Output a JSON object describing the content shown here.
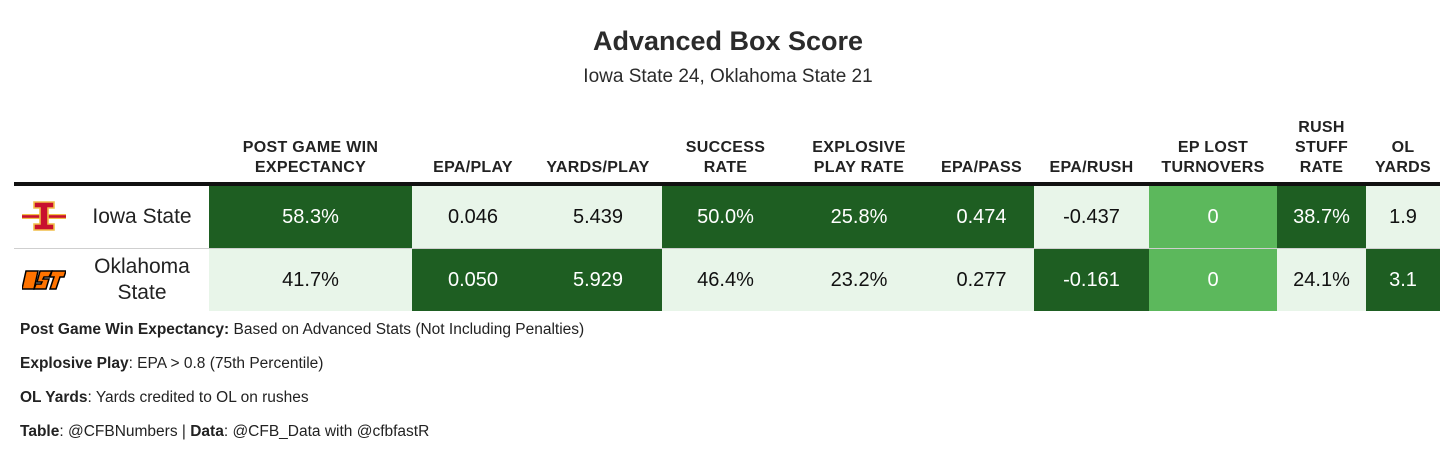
{
  "title": "Advanced Box Score",
  "subtitle": "Iowa State 24, Oklahoma State 21",
  "colors": {
    "dark": "#1e5e22",
    "mid": "#5cb85c",
    "light": "#e8f5e9",
    "text_dark": "#ffffff",
    "text_light": "#111111"
  },
  "chart_data": {
    "type": "table",
    "columns": [
      "POST GAME WIN EXPECTANCY",
      "EPA/PLAY",
      "YARDS/PLAY",
      "SUCCESS RATE",
      "EXPLOSIVE PLAY RATE",
      "EPA/PASS",
      "EPA/RUSH",
      "EP LOST TURNOVERS",
      "RUSH STUFF RATE",
      "OL YARDS"
    ],
    "rows": [
      {
        "team": "Iowa State",
        "logo": "iowa-state-logo",
        "values": [
          "58.3%",
          "0.046",
          "5.439",
          "50.0%",
          "25.8%",
          "0.474",
          "-0.437",
          "0",
          "38.7%",
          "1.9"
        ],
        "shade": [
          "dark",
          "light",
          "light",
          "dark",
          "dark",
          "dark",
          "light",
          "mid",
          "dark",
          "light"
        ]
      },
      {
        "team": "Oklahoma State",
        "logo": "oklahoma-state-logo",
        "values": [
          "41.7%",
          "0.050",
          "5.929",
          "46.4%",
          "23.2%",
          "0.277",
          "-0.161",
          "0",
          "24.1%",
          "3.1"
        ],
        "shade": [
          "light",
          "dark",
          "dark",
          "light",
          "light",
          "light",
          "dark",
          "mid",
          "light",
          "dark"
        ]
      }
    ]
  },
  "notes": [
    {
      "label": "Post Game Win Expectancy:",
      "text": " Based on Advanced Stats (Not Including Penalties)"
    },
    {
      "label": "Explosive Play",
      "text": ": EPA > 0.8 (75th Percentile)"
    },
    {
      "label": "OL Yards",
      "text": ": Yards credited to OL on rushes"
    },
    {
      "label": "Table",
      "text": ": @CFBNumbers | ",
      "label2": "Data",
      "text2": ": @CFB_Data with @cfbfastR"
    }
  ]
}
